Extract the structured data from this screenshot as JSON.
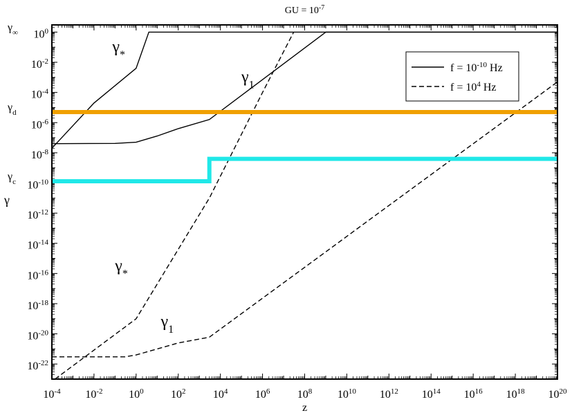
{
  "chart_data": {
    "type": "line",
    "title": {
      "base": "GU = 10",
      "exp": "-7"
    },
    "xlabel": "z",
    "ylabel": "γ",
    "x_scale": "log",
    "y_scale": "log",
    "xlim": [
      0.0001,
      1e+20
    ],
    "ylim": [
      1e-23,
      3
    ],
    "grid": false,
    "legend_position": "top-right",
    "x_ticks": [
      {
        "v": 0.0001,
        "base": "10",
        "exp": "-4"
      },
      {
        "v": 0.01,
        "base": "10",
        "exp": "-2"
      },
      {
        "v": 1,
        "base": "10",
        "exp": "0"
      },
      {
        "v": 100.0,
        "base": "10",
        "exp": "2"
      },
      {
        "v": 10000.0,
        "base": "10",
        "exp": "4"
      },
      {
        "v": 1000000.0,
        "base": "10",
        "exp": "6"
      },
      {
        "v": 100000000.0,
        "base": "10",
        "exp": "8"
      },
      {
        "v": 10000000000.0,
        "base": "10",
        "exp": "10"
      },
      {
        "v": 1000000000000.0,
        "base": "10",
        "exp": "12"
      },
      {
        "v": 100000000000000.0,
        "base": "10",
        "exp": "14"
      },
      {
        "v": 1e+16,
        "base": "10",
        "exp": "16"
      },
      {
        "v": 1e+18,
        "base": "10",
        "exp": "18"
      },
      {
        "v": 1e+20,
        "base": "10",
        "exp": "20"
      }
    ],
    "y_ticks": [
      {
        "v": 1,
        "base": "10",
        "exp": "0"
      },
      {
        "v": 0.01,
        "base": "10",
        "exp": "-2"
      },
      {
        "v": 0.0001,
        "base": "10",
        "exp": "-4"
      },
      {
        "v": 1e-06,
        "base": "10",
        "exp": "-6"
      },
      {
        "v": 1e-08,
        "base": "10",
        "exp": "-8"
      },
      {
        "v": 1e-10,
        "base": "10",
        "exp": "-10"
      },
      {
        "v": 1e-12,
        "base": "10",
        "exp": "-12"
      },
      {
        "v": 1e-14,
        "base": "10",
        "exp": "-14"
      },
      {
        "v": 1e-16,
        "base": "10",
        "exp": "-16"
      },
      {
        "v": 1e-18,
        "base": "10",
        "exp": "-18"
      },
      {
        "v": 1e-20,
        "base": "10",
        "exp": "-20"
      },
      {
        "v": 1e-22,
        "base": "10",
        "exp": "-22"
      }
    ],
    "y_reference_labels": [
      {
        "v": 1,
        "base": "γ",
        "sub": "∞"
      },
      {
        "v": 5e-06,
        "base": "γ",
        "sub": "d"
      },
      {
        "v": 1.3e-10,
        "base": "γ",
        "sub": "c"
      }
    ],
    "legend": [
      {
        "base": "f = 10",
        "exp": "-10",
        "suffix": " Hz",
        "dash": "solid"
      },
      {
        "base": "f = 10",
        "exp": "4",
        "suffix": " Hz",
        "dash": "dashed"
      }
    ],
    "series": [
      {
        "id": "gamma-star-f1",
        "dash": "solid",
        "color": "#000000",
        "points": [
          [
            0.0001,
            2e-08
          ],
          [
            0.01,
            2e-05
          ],
          [
            1,
            0.004
          ],
          [
            4,
            1
          ],
          [
            1e+20,
            1
          ]
        ]
      },
      {
        "id": "gamma-1-f1",
        "dash": "solid",
        "color": "#000000",
        "points": [
          [
            0.0001,
            4e-08
          ],
          [
            0.1,
            4.2e-08
          ],
          [
            1,
            5e-08
          ],
          [
            10,
            1.3e-07
          ],
          [
            100,
            4e-07
          ],
          [
            3000,
            1.6e-06
          ],
          [
            1000000000.0,
            1
          ],
          [
            1e+20,
            1
          ]
        ]
      },
      {
        "id": "gamma-star-f2",
        "dash": "dashed",
        "color": "#000000",
        "points": [
          [
            0.00014,
            1e-23
          ],
          [
            1,
            1e-19
          ],
          [
            3000,
            1e-11
          ],
          [
            1000000.0,
            0.0001
          ],
          [
            30000000.0,
            1
          ]
        ]
      },
      {
        "id": "gamma-1-f2",
        "dash": "dashed",
        "color": "#000000",
        "points": [
          [
            0.0001,
            3e-22
          ],
          [
            0.3,
            3e-22
          ],
          [
            1,
            4e-22
          ],
          [
            10,
            1e-21
          ],
          [
            100,
            2.5e-21
          ],
          [
            3000,
            6e-21
          ],
          [
            1e+20,
            0.0005
          ]
        ]
      },
      {
        "id": "gamma-d-line",
        "dash": "thick",
        "color": "#f0a000",
        "points": [
          [
            0.0001,
            5e-06
          ],
          [
            1e+20,
            5e-06
          ]
        ]
      },
      {
        "id": "gamma-c-line",
        "dash": "thick",
        "color": "#20e8e8",
        "points": [
          [
            0.0001,
            1.3e-10
          ],
          [
            3000,
            1.3e-10
          ],
          [
            3000,
            4e-09
          ],
          [
            1e+20,
            4e-09
          ]
        ]
      }
    ],
    "annotations": [
      {
        "x": 0.15,
        "y": 0.05,
        "base": "γ",
        "sub": "*"
      },
      {
        "x": 200000.0,
        "y": 0.0005,
        "base": "γ",
        "sub": "1"
      },
      {
        "x": 0.2,
        "y": 1.5e-16,
        "base": "γ",
        "sub": "*"
      },
      {
        "x": 30,
        "y": 3e-20,
        "base": "γ",
        "sub": "1"
      }
    ]
  }
}
